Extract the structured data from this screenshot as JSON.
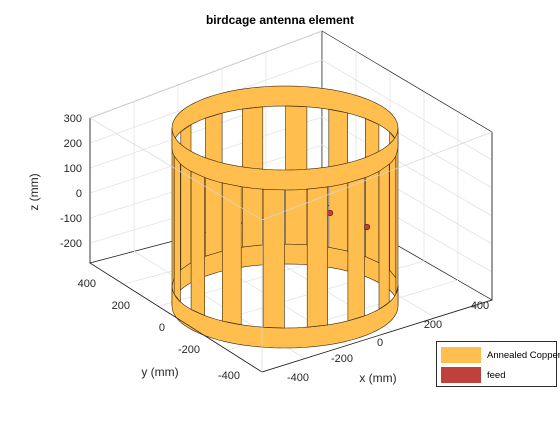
{
  "title": "birdcage antenna element",
  "axes": {
    "xlabel": "x (mm)",
    "ylabel": "y (mm)",
    "zlabel": "z (mm)",
    "x_ticks": [
      "-400",
      "-200",
      "0",
      "200",
      "400"
    ],
    "y_ticks": [
      "400",
      "200",
      "0",
      "-200",
      "-400"
    ],
    "z_ticks": [
      "300",
      "200",
      "100",
      "0",
      "-100",
      "-200"
    ]
  },
  "legend": {
    "items": [
      {
        "label": "Annealed Copper",
        "color": "#ffbe4e"
      },
      {
        "label": "feed",
        "color": "#c0413c"
      }
    ]
  },
  "colors": {
    "copper": "#ffbe4e",
    "feed": "#c0413c",
    "axis": "#262626",
    "grid": "#e3e3e3"
  }
}
